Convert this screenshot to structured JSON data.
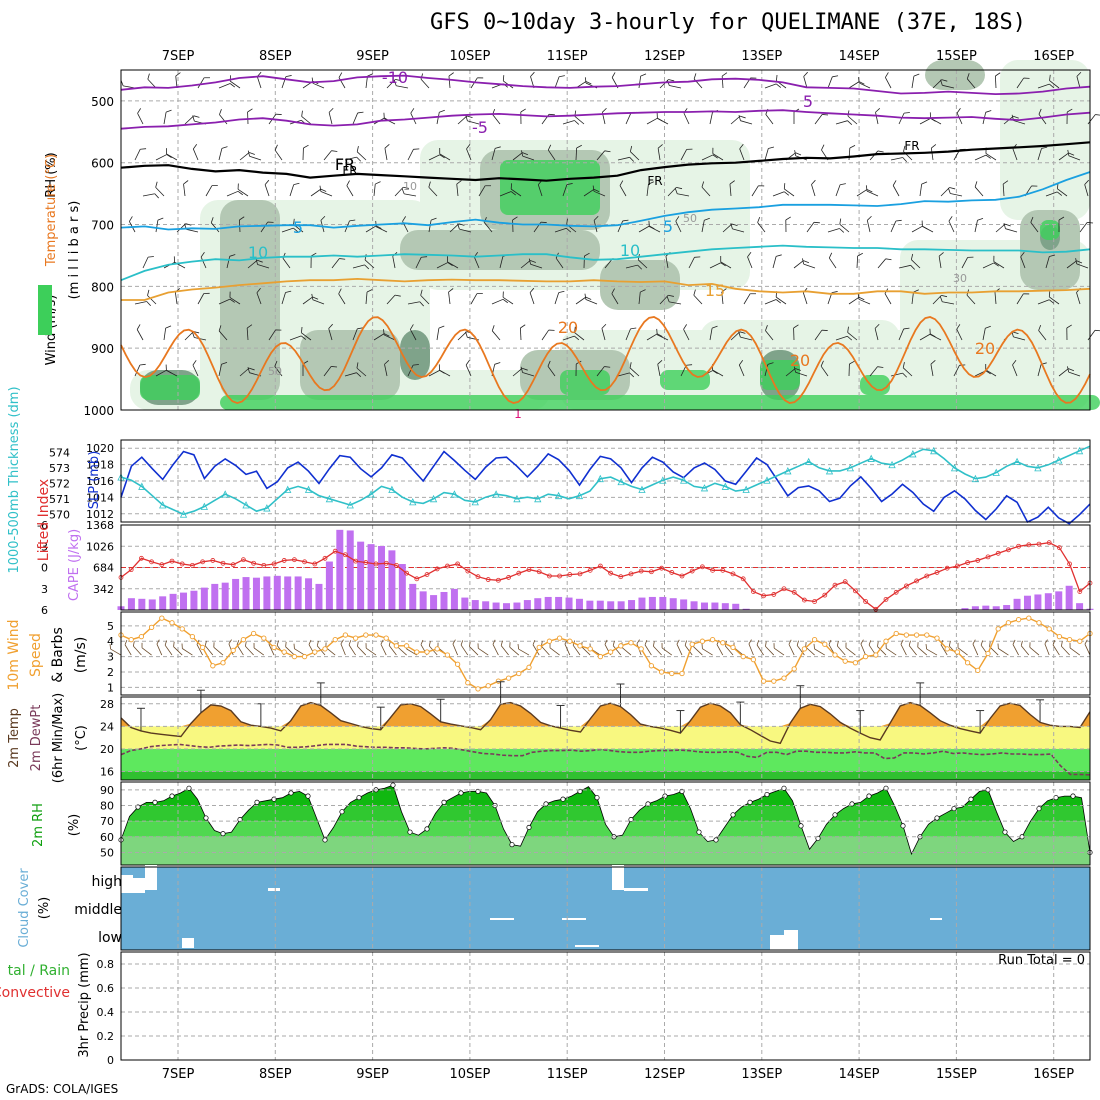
{
  "title": "GFS 0~10day 3-hourly for QUELIMANE (37E, 18S)",
  "credit": "GrADS: COLA/IGES",
  "colors": {
    "rh_light": "#e6f4e6",
    "rh_mid": "#b4c8b4",
    "rh_dark": "#7fa38a",
    "rh_green": "#3dcf5a",
    "temp_purple": "#8a1fae",
    "temp_blue": "#1aa0e0",
    "temp_cyan": "#2abfc8",
    "temp_orange": "#e8a032",
    "temp_dark_orange": "#e87820",
    "slp_blue": "#1030d0",
    "thickness_cyan": "#30c0c8",
    "li_red": "#e03030",
    "cape_purple": "#c070f0",
    "wind_orange": "#f0a030",
    "cloud_blue": "#6aaed6"
  },
  "chart_data": [
    {
      "type": "contour",
      "panel": "upper-air",
      "ylabel_parts": [
        "RH (%)",
        "Temperature (°C)",
        "Wind (m/s)"
      ],
      "ylabel2": "(m i l l i b a r s)",
      "x_tick_labels": [
        "7SEP",
        "8SEP",
        "9SEP",
        "10SEP",
        "11SEP",
        "12SEP",
        "13SEP",
        "14SEP",
        "15SEP",
        "16SEP"
      ],
      "y_ticks": [
        500,
        600,
        700,
        800,
        900,
        1000
      ],
      "ylim": [
        1000,
        450
      ],
      "contour_labels": [
        "-10",
        "-5",
        "FR",
        "5",
        "10",
        "15",
        "20",
        "10",
        "30",
        "50",
        "1"
      ],
      "isotherms": [
        {
          "label": "-10",
          "values": [
            482,
            478,
            479,
            475,
            470,
            463,
            460,
            465,
            470,
            468,
            462,
            460,
            459,
            463,
            466,
            470,
            473,
            476,
            478,
            479,
            477,
            476,
            473,
            470,
            469,
            465,
            464,
            466,
            470,
            478,
            479,
            480,
            484,
            488,
            487,
            485,
            487,
            489,
            488,
            485,
            480,
            477
          ]
        },
        {
          "label": "-5",
          "values": [
            545,
            542,
            541,
            538,
            535,
            530,
            528,
            532,
            538,
            540,
            538,
            532,
            530,
            527,
            524,
            522,
            521,
            523,
            525,
            524,
            522,
            520,
            519,
            518,
            518,
            517,
            518,
            516,
            515,
            518,
            520,
            522,
            524,
            527,
            528,
            527,
            526,
            529,
            531,
            527,
            522,
            519
          ]
        },
        {
          "label": "FR",
          "values": [
            608,
            605,
            604,
            610,
            614,
            612,
            616,
            618,
            624,
            621,
            618,
            620,
            622,
            624,
            626,
            628,
            625,
            627,
            629,
            626,
            624,
            621,
            612,
            607,
            603,
            601,
            600,
            597,
            594,
            592,
            593,
            590,
            586,
            585,
            584,
            582,
            579,
            577,
            575,
            573,
            570,
            567
          ]
        },
        {
          "label": "5",
          "values": [
            705,
            703,
            708,
            706,
            707,
            703,
            702,
            701,
            701,
            705,
            702,
            700,
            698,
            701,
            696,
            692,
            697,
            700,
            700,
            702,
            703,
            701,
            694,
            686,
            680,
            676,
            674,
            672,
            668,
            668,
            668,
            669,
            670,
            667,
            662,
            663,
            661,
            660,
            655,
            643,
            628,
            615
          ]
        },
        {
          "label": "10",
          "values": [
            790,
            775,
            765,
            760,
            756,
            758,
            754,
            752,
            752,
            750,
            752,
            750,
            748,
            749,
            750,
            752,
            750,
            748,
            748,
            753,
            757,
            756,
            752,
            748,
            744,
            740,
            738,
            736,
            734,
            736,
            737,
            738,
            738,
            740,
            740,
            741,
            742,
            742,
            742,
            745,
            744,
            740
          ]
        },
        {
          "label": "15",
          "values": [
            822,
            822,
            810,
            805,
            802,
            798,
            795,
            792,
            790,
            790,
            788,
            790,
            792,
            790,
            789,
            790,
            790,
            791,
            792,
            792,
            790,
            792,
            793,
            792,
            798,
            796,
            804,
            808,
            810,
            808,
            812,
            812,
            808,
            808,
            812,
            810,
            810,
            808,
            808,
            807,
            806,
            804
          ]
        }
      ]
    },
    {
      "type": "line",
      "panel": "slp-thickness",
      "ylabel_left": "1000-500mb Thickness (dm)",
      "ylabel_right": "SLP (mb)",
      "y_ticks_left": [
        570,
        571,
        572,
        573,
        574
      ],
      "y_ticks_right": [
        1012,
        1014,
        1016,
        1018,
        1020
      ],
      "series": [
        {
          "axis": "right",
          "values": [
            1014,
            1017.8,
            1018.9,
            1017.5,
            1016.2,
            1018.0,
            1019.6,
            1019.2,
            1016.3,
            1017.8,
            1018.7,
            1017.9,
            1016.8,
            1017.2,
            1015.1,
            1015.9,
            1017.6,
            1018.3,
            1017.2,
            1015.7,
            1017.5,
            1019.1,
            1018.9,
            1017.5,
            1016.5,
            1017.6,
            1019.2,
            1018.8,
            1017.4,
            1016.0,
            1017.8,
            1019.6,
            1018.5,
            1017.3,
            1016.2,
            1017.7,
            1018.8,
            1018.9,
            1017.8,
            1016.5,
            1017.8,
            1019.3,
            1018.6,
            1017.3,
            1015.5,
            1017.4,
            1019.0,
            1018.7,
            1017.6,
            1015.8,
            1017.6,
            1018.9,
            1018.3,
            1017.1,
            1016.4,
            1017.6,
            1018.2,
            1017.4,
            1016.0,
            1015.6,
            1017.2,
            1018.8,
            1018.0,
            1016.1,
            1014.2,
            1015.2,
            1015.4,
            1014.8,
            1013.5,
            1013.9,
            1015.4,
            1016.5,
            1015.1,
            1013.5,
            1014.4,
            1015.6,
            1014.6,
            1013.2,
            1012.3,
            1014.0,
            1014.8,
            1013.8,
            1012.4,
            1011.3,
            1012.6,
            1014.2,
            1013.4,
            1011.0,
            1011.6,
            1012.8,
            1011.5,
            1010.8,
            1011.9,
            1013.2
          ]
        },
        {
          "axis": "left",
          "values": [
            572.4,
            572.2,
            571.8,
            571.2,
            570.6,
            570.3,
            570.0,
            570.2,
            570.5,
            570.9,
            571.3,
            571.0,
            570.6,
            570.2,
            570.4,
            571.0,
            571.6,
            571.8,
            571.6,
            571.2,
            571.0,
            570.8,
            570.6,
            570.9,
            571.3,
            571.8,
            571.6,
            571.1,
            570.8,
            570.7,
            571.0,
            571.4,
            571.3,
            570.9,
            570.8,
            571.1,
            571.3,
            571.2,
            571.0,
            571.1,
            571.0,
            571.3,
            571.2,
            571.0,
            571.2,
            571.5,
            572.3,
            572.4,
            572.1,
            571.8,
            571.6,
            571.9,
            572.2,
            572.4,
            572.2,
            571.8,
            571.7,
            572.0,
            571.8,
            571.5,
            571.6,
            571.9,
            572.2,
            572.5,
            572.8,
            573.1,
            573.4,
            573.0,
            572.8,
            572.8,
            573.0,
            573.3,
            573.6,
            573.3,
            573.2,
            573.5,
            573.9,
            574.2,
            574.1,
            573.6,
            573.0,
            572.6,
            572.3,
            572.4,
            572.7,
            573.1,
            573.4,
            573.1,
            573.0,
            573.2,
            573.5,
            573.8,
            574.1,
            574.4
          ]
        }
      ]
    },
    {
      "type": "bar+line",
      "panel": "li-cape",
      "ylabel_left": "Lifted Index",
      "ylabel_right": "CAPE (J/kg)",
      "y_ticks_left": [
        "-6",
        "-3",
        "0",
        "3",
        "6"
      ],
      "y_ticks_right": [
        342,
        684,
        1026,
        1368
      ],
      "cape_values": [
        60,
        190,
        180,
        170,
        220,
        260,
        280,
        310,
        360,
        420,
        440,
        500,
        530,
        520,
        540,
        550,
        540,
        540,
        510,
        420,
        780,
        1290,
        1280,
        1100,
        1060,
        1030,
        960,
        740,
        420,
        300,
        240,
        290,
        340,
        200,
        160,
        140,
        120,
        110,
        120,
        160,
        190,
        210,
        210,
        200,
        180,
        150,
        150,
        140,
        140,
        160,
        200,
        210,
        210,
        190,
        170,
        140,
        120,
        120,
        110,
        100,
        20,
        0,
        0,
        0,
        0,
        0,
        0,
        0,
        0,
        0,
        0,
        0,
        0,
        0,
        0,
        0,
        0,
        0,
        0,
        0,
        0,
        30,
        60,
        70,
        60,
        80,
        180,
        230,
        250,
        270,
        300,
        390,
        110,
        20
      ],
      "li_values": [
        1.4,
        0.3,
        -1.3,
        -0.8,
        -0.4,
        -0.9,
        -0.5,
        -0.3,
        -0.8,
        -1.0,
        -0.6,
        -0.4,
        -1.1,
        -0.6,
        -0.3,
        -0.5,
        -1.0,
        -1.1,
        -0.8,
        -0.5,
        -1.3,
        -2.3,
        -1.8,
        -0.9,
        -0.7,
        -0.5,
        -0.6,
        -0.3,
        0.8,
        1.6,
        1.0,
        0.2,
        -0.2,
        -0.5,
        0.5,
        1.3,
        1.7,
        1.8,
        1.4,
        0.8,
        0.3,
        0.6,
        1.2,
        1.2,
        1.0,
        0.9,
        0.4,
        -0.2,
        0.8,
        1.3,
        0.9,
        0.5,
        0.6,
        0.1,
        0.7,
        1.2,
        0.5,
        -0.1,
        0.4,
        0.4,
        0.9,
        1.6,
        3.4,
        4.0,
        3.8,
        3.0,
        3.5,
        4.6,
        4.8,
        3.9,
        2.5,
        2.0,
        3.3,
        4.8,
        5.9,
        4.5,
        3.5,
        2.6,
        1.9,
        1.2,
        0.7,
        0.1,
        -0.2,
        -0.7,
        -1.0,
        -1.5,
        -2.0,
        -2.5,
        -3.0,
        -3.2,
        -3.3,
        -3.5,
        -2.8,
        -0.5,
        3.4,
        2.2
      ]
    },
    {
      "type": "line",
      "panel": "wind10m",
      "ylabel": "10m Wind Speed & Barbs (m/s)",
      "y_ticks": [
        1,
        2,
        3,
        4,
        5
      ],
      "values": [
        4.4,
        4.1,
        4.3,
        4.9,
        5.5,
        5.2,
        4.8,
        4.3,
        3.6,
        2.4,
        2.6,
        3.4,
        4.1,
        4.5,
        4.2,
        3.6,
        3.3,
        3.0,
        3.0,
        3.3,
        3.5,
        4.1,
        4.4,
        4.2,
        4.4,
        4.4,
        4.2,
        3.7,
        3.7,
        3.3,
        3.3,
        3.5,
        3.1,
        2.5,
        1.3,
        0.9,
        1.1,
        1.4,
        1.6,
        1.9,
        2.3,
        3.6,
        4.0,
        4.2,
        4.0,
        3.7,
        3.5,
        3.0,
        3.3,
        3.7,
        3.9,
        3.5,
        2.4,
        2.0,
        1.9,
        1.9,
        3.8,
        4.0,
        4.1,
        3.9,
        3.6,
        3.0,
        2.8,
        1.4,
        1.4,
        1.6,
        2.2,
        3.5,
        4.1,
        3.8,
        3.1,
        2.7,
        2.6,
        3.0,
        3.1,
        4.0,
        4.5,
        4.4,
        4.4,
        4.4,
        4.2,
        3.5,
        3.3,
        2.6,
        2.1,
        3.2,
        4.8,
        5.2,
        5.4,
        5.5,
        5.2,
        4.8,
        4.3,
        4.1,
        4.0,
        4.5
      ]
    },
    {
      "type": "area",
      "panel": "temp2m",
      "ylabel": "2m Temp 2m DewPt (6hr Min/Max) (°C)",
      "y_ticks": [
        16,
        20,
        24,
        28
      ],
      "temp_values": [
        25.5,
        23.8,
        23.2,
        22.8,
        22.6,
        22.4,
        22.2,
        24.5,
        26.4,
        27.8,
        27.6,
        26.8,
        24.8,
        24.2,
        24.0,
        23.7,
        23.2,
        25.0,
        27.6,
        28.2,
        27.7,
        26.4,
        25.0,
        24.5,
        24.0,
        23.6,
        23.4,
        25.6,
        27.8,
        28.0,
        27.5,
        26.2,
        24.8,
        24.4,
        24.1,
        23.8,
        23.4,
        25.2,
        27.9,
        28.2,
        27.6,
        26.3,
        24.7,
        24.1,
        23.7,
        23.3,
        23.0,
        25.4,
        27.6,
        28.1,
        27.5,
        26.1,
        24.4,
        24.0,
        23.7,
        23.3,
        22.8,
        25.0,
        27.4,
        28.1,
        27.6,
        26.4,
        24.3,
        23.4,
        22.4,
        21.4,
        21.0,
        24.6,
        27.2,
        27.9,
        27.5,
        26.2,
        24.7,
        23.7,
        22.8,
        22.0,
        21.6,
        24.6,
        27.6,
        28.2,
        27.7,
        26.4,
        25.0,
        24.2,
        23.6,
        23.2,
        22.8,
        25.4,
        27.6,
        28.1,
        27.7,
        26.1,
        24.7,
        24.2,
        24.0,
        24.0,
        23.8,
        26.6
      ],
      "dewpt_values": [
        19.0,
        19.7,
        20.0,
        20.4,
        20.6,
        20.7,
        20.8,
        20.6,
        20.4,
        20.3,
        20.5,
        20.6,
        20.7,
        20.6,
        20.7,
        20.8,
        20.7,
        20.3,
        20.3,
        20.4,
        20.6,
        20.8,
        20.8,
        20.8,
        20.5,
        20.4,
        20.3,
        20.3,
        20.2,
        20.2,
        20.1,
        20.0,
        20.1,
        20.2,
        20.1,
        19.8,
        19.5,
        19.2,
        19.1,
        18.9,
        18.8,
        18.8,
        19.4,
        19.6,
        19.7,
        19.7,
        19.8,
        19.6,
        19.7,
        19.9,
        19.7,
        19.5,
        19.4,
        19.4,
        19.6,
        19.7,
        19.7,
        19.8,
        19.7,
        19.5,
        19.4,
        19.4,
        19.5,
        19.4,
        18.7,
        18.5,
        19.4,
        19.4,
        19.0,
        19.6,
        19.6,
        19.4,
        19.4,
        19.3,
        19.3,
        19.5,
        19.3,
        19.3,
        18.3,
        18.4,
        19.3,
        19.3,
        19.1,
        19.3,
        19.6,
        19.2,
        19.3,
        19.1,
        19.0,
        19.1,
        19.3,
        19.1,
        19.1,
        19.0,
        19.0,
        19.1,
        17.0,
        15.5,
        15.5,
        15.4
      ]
    },
    {
      "type": "area",
      "panel": "rh2m",
      "ylabel": "2m RH (%)",
      "y_ticks": [
        50,
        60,
        70,
        80,
        90
      ],
      "values": [
        58,
        73,
        79,
        82,
        82,
        83,
        86,
        88,
        91,
        84,
        72,
        64,
        62,
        63,
        71,
        77,
        82,
        83,
        84,
        85,
        88,
        89,
        86,
        72,
        58,
        66,
        76,
        82,
        85,
        88,
        90,
        91,
        93,
        76,
        63,
        61,
        65,
        75,
        82,
        85,
        88,
        89,
        89,
        88,
        80,
        65,
        55,
        54,
        66,
        76,
        81,
        83,
        84,
        86,
        89,
        92,
        85,
        68,
        60,
        61,
        71,
        77,
        81,
        83,
        86,
        87,
        89,
        78,
        63,
        57,
        58,
        66,
        74,
        79,
        82,
        84,
        87,
        89,
        91,
        83,
        67,
        52,
        59,
        68,
        74,
        78,
        81,
        82,
        86,
        88,
        91,
        80,
        67,
        49,
        60,
        68,
        72,
        75,
        78,
        79,
        84,
        89,
        90,
        76,
        63,
        57,
        60,
        70,
        78,
        83,
        85,
        86,
        86,
        85,
        50
      ]
    },
    {
      "type": "heatmap",
      "panel": "cloud",
      "ylabel": "Cloud Cover (%)",
      "row_labels": [
        "high",
        "middle",
        "low"
      ]
    },
    {
      "type": "bar",
      "panel": "precip",
      "ylabel": "3hr Precip (mm)",
      "legend_left": [
        "tal / Rain",
        "Convective"
      ],
      "run_total": "Run Total = 0",
      "y_ticks": [
        "0",
        "0.2",
        "0.4",
        "0.6",
        "0.8"
      ],
      "ylim": [
        0,
        0.9
      ],
      "x_tick_labels": [
        "7SEP",
        "8SEP",
        "9SEP",
        "10SEP",
        "11SEP",
        "12SEP",
        "13SEP",
        "14SEP",
        "15SEP",
        "16SEP"
      ],
      "values": []
    }
  ]
}
